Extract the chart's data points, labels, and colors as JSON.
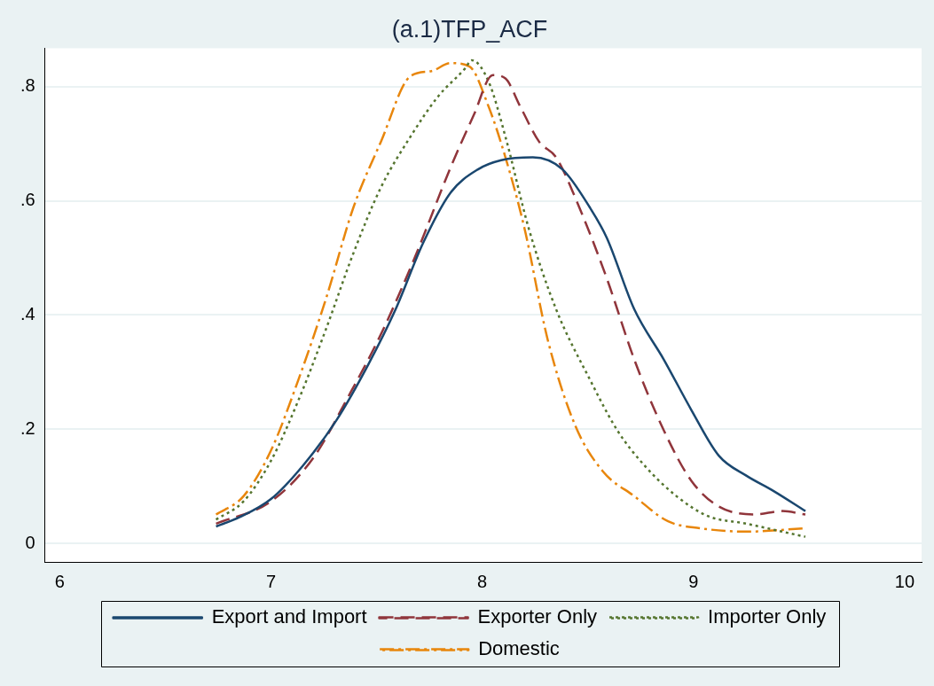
{
  "chart_data": {
    "type": "line",
    "title": "(a.1)TFP_ACF",
    "xlim": [
      5.93,
      10.08
    ],
    "xticks": [
      6,
      7,
      8,
      9,
      10
    ],
    "ylim": [
      -0.032,
      0.867
    ],
    "yticks": [
      {
        "value": 0,
        "label": "0"
      },
      {
        "value": 0.2,
        "label": ".2"
      },
      {
        "value": 0.4,
        "label": ".4"
      },
      {
        "value": 0.6,
        "label": ".6"
      },
      {
        "value": 0.8,
        "label": ".8"
      }
    ],
    "grid": "y",
    "legend": "bottom",
    "marker": "none",
    "series": [
      {
        "name": "Export and Import",
        "color": "#1a476f",
        "line_style": "solid",
        "x": [
          6.74,
          6.85,
          7.0,
          7.15,
          7.31,
          7.46,
          7.59,
          7.72,
          7.85,
          7.98,
          8.09,
          8.24,
          8.38,
          8.51,
          8.59,
          8.72,
          8.86,
          8.99,
          9.12,
          9.25,
          9.38,
          9.53
        ],
        "values": [
          0.03,
          0.046,
          0.078,
          0.136,
          0.216,
          0.313,
          0.41,
          0.526,
          0.614,
          0.655,
          0.671,
          0.676,
          0.655,
          0.588,
          0.535,
          0.41,
          0.322,
          0.234,
          0.154,
          0.119,
          0.092,
          0.057
        ]
      },
      {
        "name": "Exporter Only",
        "color": "#90353b",
        "line_style": "dashed",
        "x": [
          6.74,
          7.0,
          7.2,
          7.37,
          7.52,
          7.68,
          7.85,
          7.96,
          8.05,
          8.11,
          8.18,
          8.27,
          8.35,
          8.46,
          8.59,
          8.72,
          8.86,
          8.99,
          9.12,
          9.29,
          9.42,
          9.53
        ],
        "values": [
          0.035,
          0.074,
          0.15,
          0.26,
          0.366,
          0.5,
          0.658,
          0.75,
          0.82,
          0.814,
          0.765,
          0.703,
          0.676,
          0.588,
          0.464,
          0.322,
          0.198,
          0.11,
          0.065,
          0.051,
          0.057,
          0.051
        ]
      },
      {
        "name": "Importer Only",
        "color": "#55752f",
        "line_style": "dotted",
        "x": [
          6.74,
          6.87,
          7.0,
          7.13,
          7.26,
          7.39,
          7.52,
          7.66,
          7.79,
          7.92,
          7.95,
          8.03,
          8.11,
          8.22,
          8.35,
          8.51,
          8.64,
          8.77,
          8.92,
          9.07,
          9.25,
          9.42,
          9.53
        ],
        "values": [
          0.042,
          0.074,
          0.145,
          0.251,
          0.375,
          0.508,
          0.623,
          0.712,
          0.782,
          0.832,
          0.846,
          0.809,
          0.712,
          0.552,
          0.41,
          0.287,
          0.198,
          0.136,
          0.083,
          0.048,
          0.035,
          0.021,
          0.012
        ]
      },
      {
        "name": "Domestic",
        "color": "#e8860c",
        "line_style": "dashdot",
        "x": [
          6.74,
          6.87,
          7.0,
          7.13,
          7.26,
          7.39,
          7.52,
          7.66,
          7.76,
          7.85,
          7.94,
          8.03,
          8.11,
          8.2,
          8.31,
          8.44,
          8.57,
          8.72,
          8.88,
          9.03,
          9.25,
          9.53
        ],
        "values": [
          0.051,
          0.083,
          0.163,
          0.287,
          0.428,
          0.588,
          0.703,
          0.818,
          0.827,
          0.841,
          0.835,
          0.765,
          0.676,
          0.552,
          0.357,
          0.207,
          0.127,
          0.083,
          0.039,
          0.027,
          0.021,
          0.027
        ]
      }
    ]
  }
}
